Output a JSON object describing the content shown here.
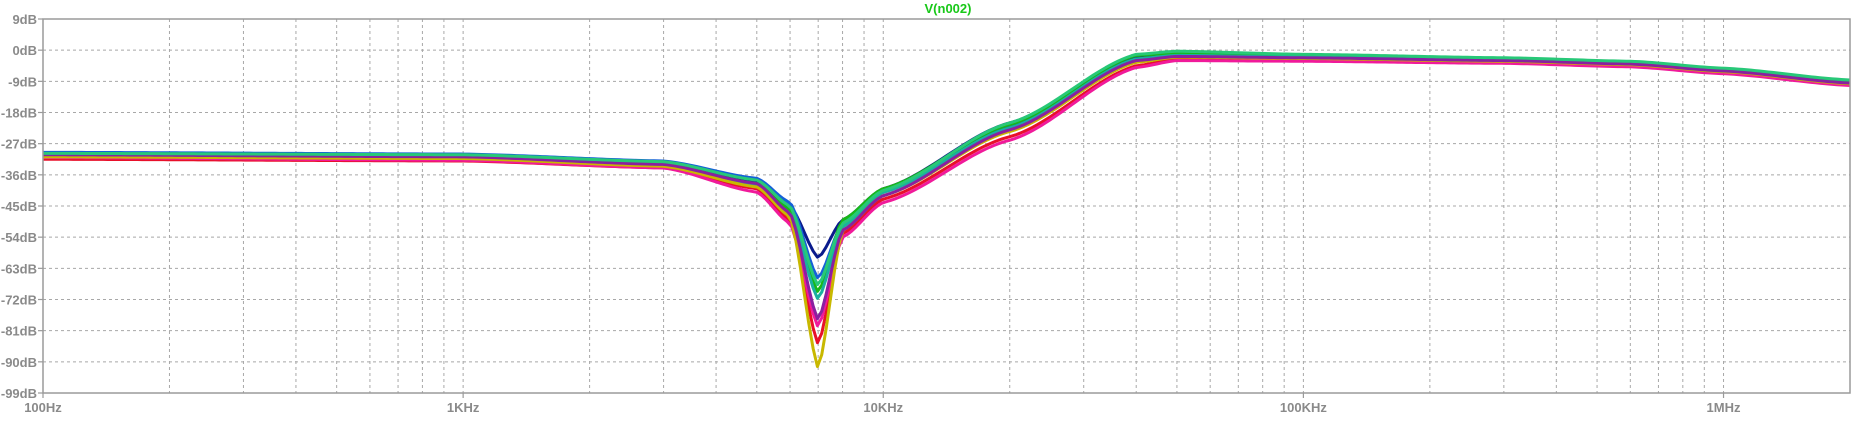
{
  "chart_data": {
    "type": "line",
    "title": "V(n002)",
    "xscale": "log",
    "xlim": [
      100,
      2000000
    ],
    "ylim": [
      -99,
      9
    ],
    "x_ticks": [
      {
        "value": 100,
        "label": "100Hz"
      },
      {
        "value": 1000,
        "label": "1KHz"
      },
      {
        "value": 10000,
        "label": "10KHz"
      },
      {
        "value": 100000,
        "label": "100KHz"
      },
      {
        "value": 1000000,
        "label": "1MHz"
      }
    ],
    "y_ticks": [
      {
        "value": 9,
        "label": "9dB"
      },
      {
        "value": 0,
        "label": "0dB"
      },
      {
        "value": -9,
        "label": "-9dB"
      },
      {
        "value": -18,
        "label": "-18dB"
      },
      {
        "value": -27,
        "label": "-27dB"
      },
      {
        "value": -36,
        "label": "-36dB"
      },
      {
        "value": -45,
        "label": "-45dB"
      },
      {
        "value": -54,
        "label": "-54dB"
      },
      {
        "value": -63,
        "label": "-63dB"
      },
      {
        "value": -72,
        "label": "-72dB"
      },
      {
        "value": -81,
        "label": "-81dB"
      },
      {
        "value": -90,
        "label": "-90dB"
      },
      {
        "value": -99,
        "label": "-99dB"
      }
    ],
    "grid": true,
    "x": [
      100,
      1000,
      3000,
      5000,
      6000,
      7000,
      8000,
      10000,
      20000,
      40000,
      50000,
      100000,
      300000,
      600000,
      1000000,
      2000000
    ],
    "series": [
      {
        "color": "#0a1a8c",
        "values": [
          -30,
          -30.5,
          -32.5,
          -38,
          -45,
          -60,
          -49,
          -40,
          -21,
          -2,
          -0.5,
          -1.5,
          -2.5,
          -3.5,
          -5.5,
          -9
        ]
      },
      {
        "color": "#1560d8",
        "values": [
          -29.5,
          -30,
          -32,
          -37,
          -44,
          -66,
          -50,
          -41,
          -22,
          -3,
          -1,
          -1.8,
          -2.8,
          -3.8,
          -5.8,
          -9.2
        ]
      },
      {
        "color": "#18b818",
        "values": [
          -30.5,
          -31,
          -33,
          -38.5,
          -46,
          -70,
          -49,
          -40,
          -21.5,
          -1.5,
          -0.8,
          -1.5,
          -2.5,
          -3.5,
          -5.4,
          -8.8
        ]
      },
      {
        "color": "#1ab0a0",
        "values": [
          -31,
          -31.5,
          -33.5,
          -39,
          -47,
          -72,
          -51,
          -41,
          -22.5,
          -2.5,
          -1.5,
          -2,
          -3,
          -4,
          -6,
          -9.5
        ]
      },
      {
        "color": "#e8102a",
        "values": [
          -31.5,
          -32,
          -34,
          -40,
          -49,
          -85,
          -53,
          -43,
          -25,
          -4.5,
          -2.5,
          -2.8,
          -3.5,
          -4.5,
          -6.5,
          -10
        ]
      },
      {
        "color": "#f01a9a",
        "values": [
          -31,
          -31.8,
          -34,
          -41,
          -50,
          -80,
          -54,
          -44,
          -26,
          -5,
          -3,
          -3.2,
          -3.8,
          -4.8,
          -6.8,
          -10.2
        ]
      },
      {
        "color": "#c8b800",
        "values": [
          -30.8,
          -31.3,
          -33.5,
          -39.5,
          -48,
          -92,
          -52,
          -42,
          -23.5,
          -3.5,
          -2,
          -2.4,
          -3.2,
          -4.2,
          -6.2,
          -9.7
        ]
      },
      {
        "color": "#8a20a0",
        "values": [
          -30.2,
          -30.8,
          -33,
          -38.5,
          -47,
          -78,
          -52,
          -42,
          -23,
          -3,
          -1.8,
          -2.2,
          -3,
          -4,
          -6,
          -9.5
        ]
      },
      {
        "color": "#28c878",
        "values": [
          -29.8,
          -30.2,
          -32.2,
          -37.5,
          -45,
          -68,
          -50,
          -40.5,
          -21,
          -1.2,
          -0.3,
          -1.2,
          -2.2,
          -3.2,
          -5.2,
          -8.6
        ]
      }
    ]
  }
}
